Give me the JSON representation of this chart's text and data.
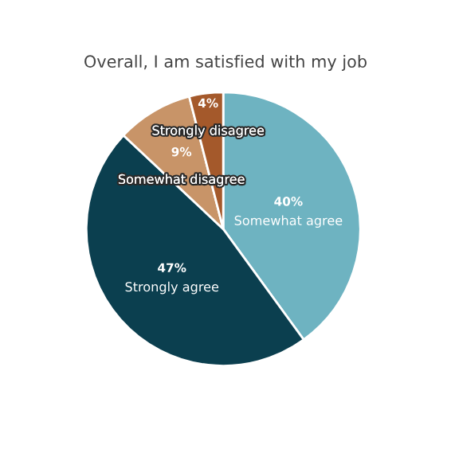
{
  "chart_data": {
    "type": "pie",
    "title": "Overall, I am satisfied with my job",
    "categories": [
      "Somewhat agree",
      "Strongly agree",
      "Somewhat disagree",
      "Strongly disagree"
    ],
    "values": [
      40,
      47,
      9,
      4
    ],
    "value_labels": [
      "40%",
      "47%",
      "9%",
      "4%"
    ],
    "colors": [
      "#6eb3c1",
      "#0b3f4f",
      "#c89468",
      "#a4592b"
    ],
    "legend": false
  }
}
